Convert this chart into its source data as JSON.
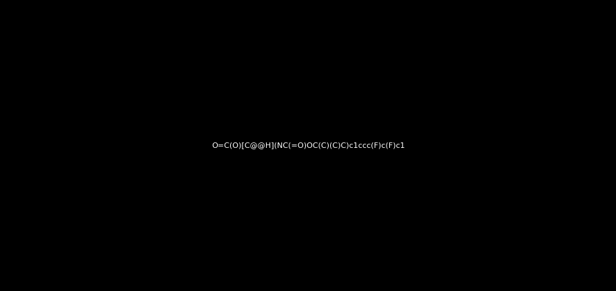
{
  "smiles": "O=C(O)[C@@H](NC(=O)OC(C)(C)C)c1ccc(F)c(F)c1",
  "title": "",
  "background_color": "#000000",
  "atom_colors": {
    "O": "#ff0000",
    "N": "#0000ff",
    "F": "#7fff00",
    "C": "#ffffff",
    "H": "#ffffff"
  },
  "bond_color": "#ffffff",
  "figsize": [
    8.95,
    4.23
  ],
  "dpi": 100
}
